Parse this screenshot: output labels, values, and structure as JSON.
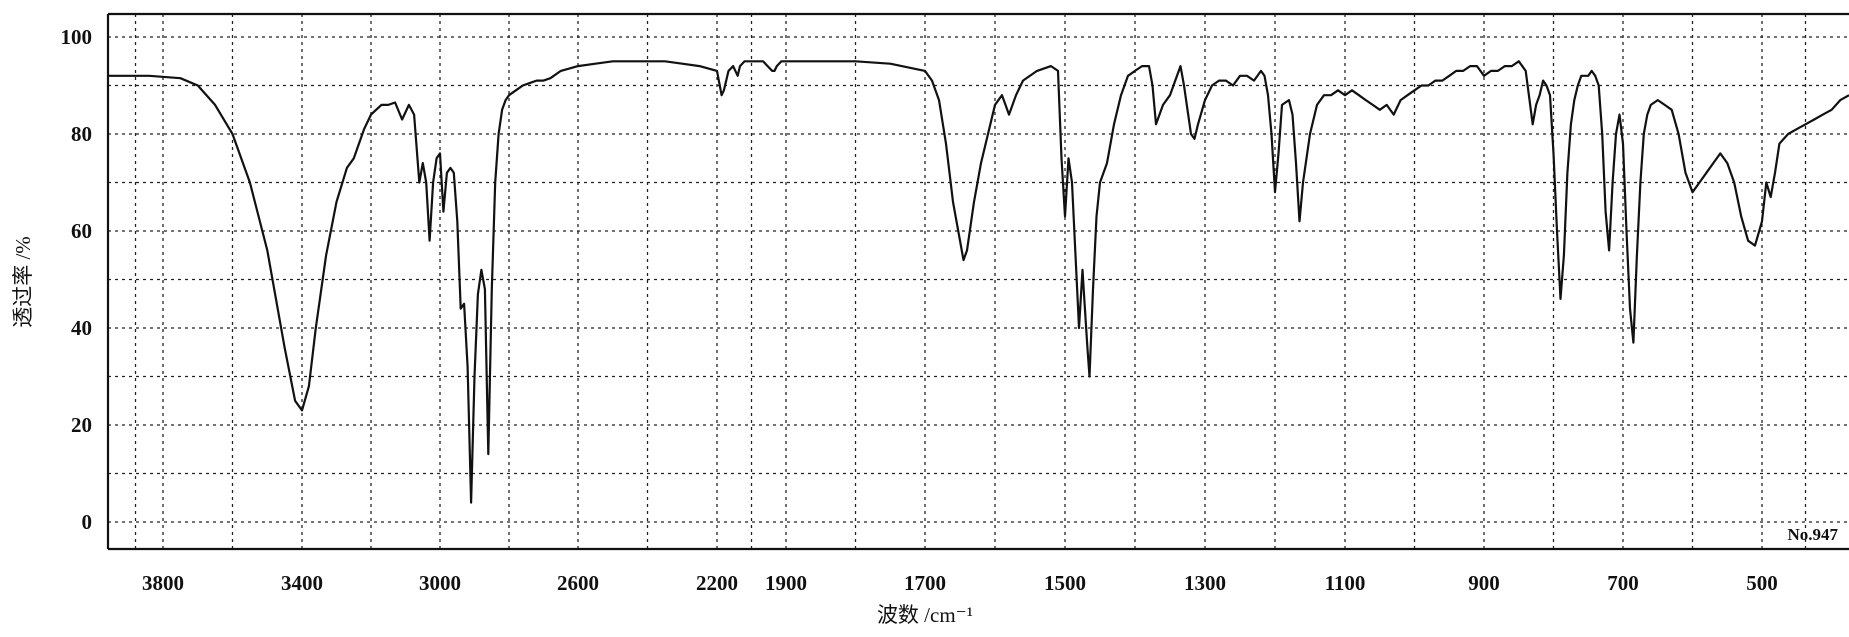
{
  "chart_data": {
    "type": "line",
    "xlabel": "波数 /cm⁻¹",
    "ylabel": "透过率 /%",
    "sample_no": "No.947",
    "ylim": [
      0,
      100
    ],
    "y_ticks": [
      0,
      20,
      40,
      60,
      80,
      100
    ],
    "x_axis_note": "piecewise-linear wavenumber axis (compressed above 2000 cm-1 region)",
    "x_ticks": [
      {
        "value": 3800,
        "label": "3800"
      },
      {
        "value": 3400,
        "label": "3400"
      },
      {
        "value": 3000,
        "label": "3000"
      },
      {
        "value": 2600,
        "label": "2600"
      },
      {
        "value": 2200,
        "label": "2200"
      },
      {
        "value": 1900,
        "label": "1900"
      },
      {
        "value": 1700,
        "label": "1700"
      },
      {
        "value": 1500,
        "label": "1500"
      },
      {
        "value": 1300,
        "label": "1300"
      },
      {
        "value": 1100,
        "label": "1100"
      },
      {
        "value": 900,
        "label": "900"
      },
      {
        "value": 700,
        "label": "700"
      },
      {
        "value": 500,
        "label": "500"
      }
    ],
    "grid": true,
    "series": [
      {
        "x": [
          4000,
          3850,
          3750,
          3700,
          3650,
          3600,
          3550,
          3500,
          3450,
          3420,
          3400,
          3380,
          3360,
          3330,
          3300,
          3270,
          3250,
          3220,
          3200,
          3170,
          3150,
          3130,
          3110,
          3090,
          3075,
          3060,
          3050,
          3040,
          3030,
          3020,
          3010,
          3000,
          2990,
          2980,
          2970,
          2960,
          2950,
          2940,
          2930,
          2920,
          2910,
          2900,
          2890,
          2880,
          2870,
          2860,
          2850,
          2840,
          2830,
          2820,
          2810,
          2800,
          2780,
          2760,
          2740,
          2720,
          2700,
          2680,
          2650,
          2600,
          2550,
          2500,
          2450,
          2400,
          2350,
          2300,
          2250,
          2200,
          2180,
          2170,
          2160,
          2150,
          2130,
          2110,
          2100,
          2080,
          2050,
          2000,
          1980,
          1960,
          1950,
          1940,
          1920,
          1900,
          1880,
          1850,
          1800,
          1750,
          1700,
          1690,
          1680,
          1670,
          1660,
          1650,
          1645,
          1640,
          1630,
          1620,
          1610,
          1600,
          1590,
          1585,
          1580,
          1570,
          1560,
          1540,
          1520,
          1510,
          1505,
          1500,
          1495,
          1490,
          1485,
          1480,
          1475,
          1472,
          1468,
          1465,
          1460,
          1455,
          1450,
          1440,
          1430,
          1420,
          1410,
          1400,
          1390,
          1385,
          1380,
          1375,
          1370,
          1360,
          1350,
          1340,
          1335,
          1330,
          1325,
          1320,
          1315,
          1310,
          1300,
          1290,
          1280,
          1270,
          1260,
          1250,
          1240,
          1230,
          1220,
          1215,
          1210,
          1205,
          1200,
          1195,
          1190,
          1180,
          1175,
          1170,
          1165,
          1160,
          1150,
          1140,
          1130,
          1120,
          1110,
          1100,
          1090,
          1080,
          1070,
          1060,
          1050,
          1040,
          1030,
          1020,
          1010,
          1000,
          990,
          980,
          970,
          960,
          950,
          940,
          930,
          920,
          910,
          900,
          890,
          880,
          870,
          860,
          850,
          840,
          830,
          825,
          820,
          815,
          810,
          805,
          800,
          795,
          790,
          785,
          780,
          775,
          770,
          765,
          760,
          750,
          745,
          740,
          735,
          730,
          725,
          720,
          715,
          710,
          705,
          700,
          695,
          690,
          685,
          680,
          675,
          670,
          665,
          660,
          650,
          640,
          630,
          620,
          610,
          600,
          590,
          580,
          570,
          560,
          550,
          540,
          530,
          520,
          510,
          500,
          495,
          490,
          485,
          480,
          470,
          460,
          450,
          440,
          430,
          420,
          410,
          400
        ],
        "y": [
          92,
          92,
          91.5,
          90,
          86,
          80,
          70,
          56,
          36,
          25,
          23,
          28,
          40,
          55,
          66,
          73,
          75,
          81,
          84,
          86,
          86,
          86.5,
          83,
          86,
          84,
          70,
          74,
          70,
          58,
          70,
          75,
          76,
          64,
          72,
          73,
          72,
          62,
          44,
          45,
          32,
          4,
          30,
          47,
          52,
          48,
          14,
          48,
          70,
          80,
          85,
          87,
          88,
          89,
          90,
          90.5,
          91,
          91,
          91.5,
          93,
          94,
          94.5,
          95,
          95,
          95,
          95,
          94.5,
          94,
          93,
          88,
          89,
          91,
          93,
          94,
          92,
          94,
          95,
          95,
          95,
          94,
          93,
          93,
          94,
          95,
          95,
          95,
          95,
          95,
          94.5,
          93,
          91,
          87,
          78,
          66,
          58,
          54,
          56,
          66,
          74,
          80,
          86,
          88,
          86,
          84,
          88,
          91,
          93,
          94,
          93,
          75,
          63,
          75,
          70,
          55,
          40,
          52,
          45,
          36,
          30,
          48,
          63,
          70,
          74,
          82,
          88,
          92,
          93,
          94,
          94,
          94,
          90,
          82,
          86,
          88,
          92,
          94,
          90,
          85,
          80,
          79,
          82,
          87,
          90,
          91,
          91,
          90,
          92,
          92,
          91,
          93,
          92,
          88,
          80,
          68,
          76,
          86,
          87,
          84,
          74,
          62,
          70,
          80,
          86,
          88,
          88,
          89,
          88,
          89,
          88,
          87,
          86,
          85,
          86,
          84,
          87,
          88,
          89,
          90,
          90,
          91,
          91,
          92,
          93,
          93,
          94,
          94,
          92,
          93,
          93,
          94,
          94,
          95,
          93,
          82,
          86,
          88,
          91,
          90,
          88,
          76,
          60,
          46,
          55,
          72,
          82,
          87,
          90,
          92,
          92,
          93,
          92,
          90,
          80,
          64,
          56,
          70,
          80,
          84,
          78,
          60,
          44,
          37,
          55,
          70,
          80,
          84,
          86,
          87,
          86,
          85,
          80,
          72,
          68,
          70,
          72,
          74,
          76,
          74,
          70,
          63,
          58,
          57,
          62,
          70,
          67,
          72,
          78,
          80,
          81,
          82,
          83,
          84,
          85,
          87,
          88
        ]
      }
    ]
  }
}
